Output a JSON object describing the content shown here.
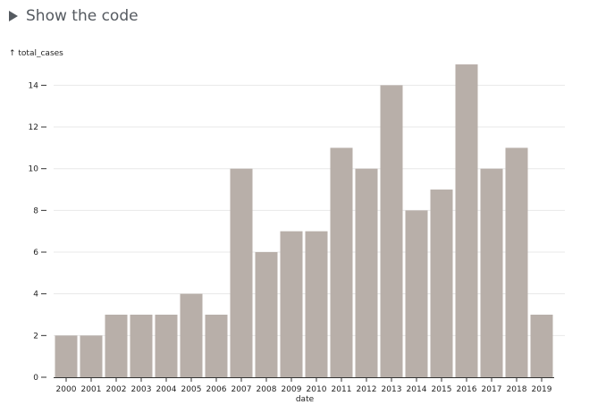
{
  "code_toggle": {
    "label": "Show the code"
  },
  "chart_data": {
    "type": "bar",
    "xlabel": "date",
    "ylabel": "↑ total_cases",
    "categories": [
      "2000",
      "2001",
      "2002",
      "2003",
      "2004",
      "2005",
      "2006",
      "2007",
      "2008",
      "2009",
      "2010",
      "2011",
      "2012",
      "2013",
      "2014",
      "2015",
      "2016",
      "2017",
      "2018",
      "2019"
    ],
    "values": [
      2,
      2,
      3,
      3,
      3,
      4,
      3,
      10,
      6,
      7,
      7,
      11,
      10,
      14,
      8,
      9,
      15,
      10,
      11,
      3
    ],
    "ylim": [
      0,
      15
    ],
    "yticks": [
      0,
      2,
      4,
      6,
      8,
      10,
      12,
      14
    ],
    "grid": true,
    "bar_color": "#b8afa9"
  }
}
